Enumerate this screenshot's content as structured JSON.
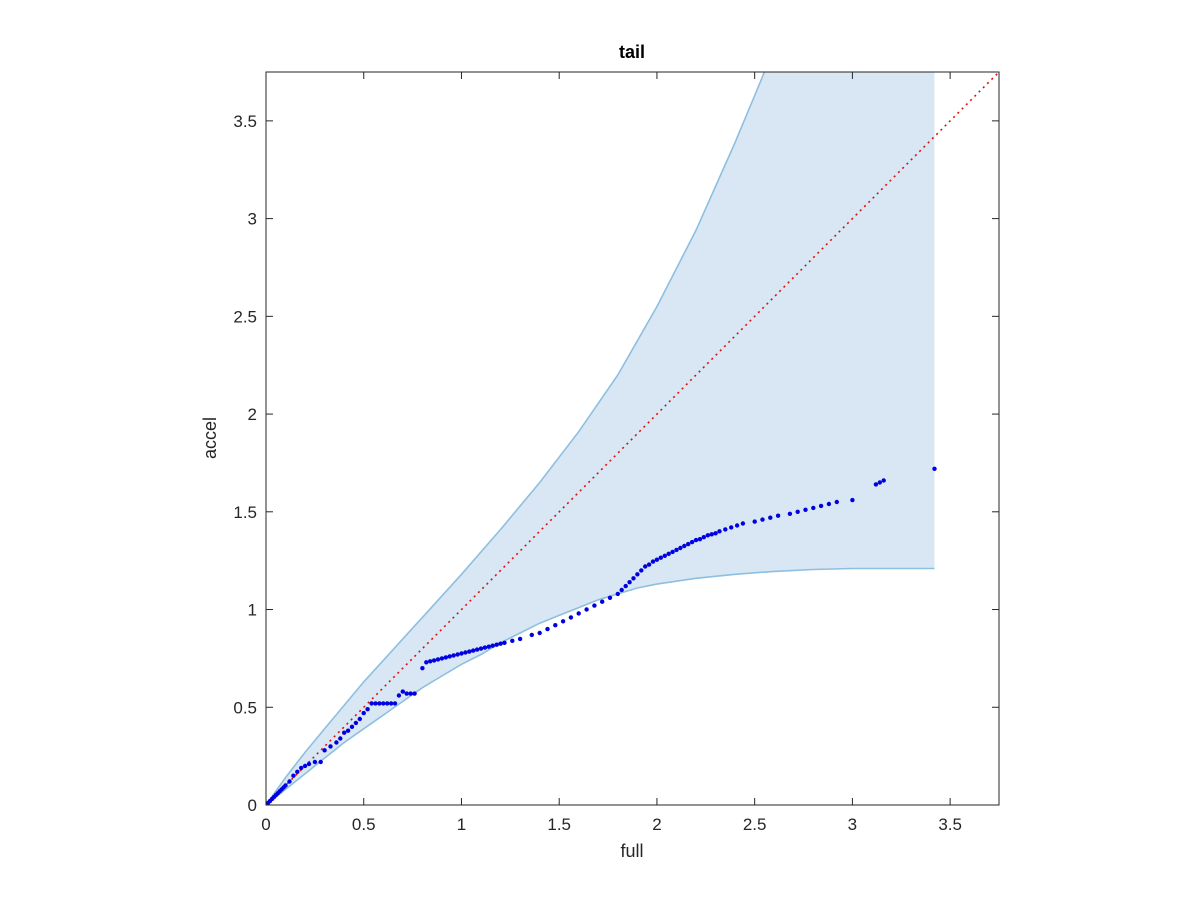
{
  "chart_data": {
    "type": "scatter",
    "title": "tail",
    "xlabel": "full",
    "ylabel": "accel",
    "xlim": [
      0,
      3.75
    ],
    "ylim": [
      0,
      3.75
    ],
    "xticks": [
      0,
      0.5,
      1,
      1.5,
      2,
      2.5,
      3,
      3.5
    ],
    "xtick_labels": [
      "0",
      "0.5",
      "1",
      "1.5",
      "2",
      "2.5",
      "3",
      "3.5"
    ],
    "yticks": [
      0,
      0.5,
      1,
      1.5,
      2,
      2.5,
      3,
      3.5
    ],
    "ytick_labels": [
      "0",
      "0.5",
      "1",
      "1.5",
      "2",
      "2.5",
      "3",
      "3.5"
    ],
    "grid": false,
    "colors": {
      "points": "#0000e0",
      "band_fill": "#d8e7f3",
      "band_edge": "#8dbfe0",
      "reference_line": "#e01010",
      "axes": "#262626"
    },
    "band": {
      "upper": {
        "x": [
          0,
          0.1,
          0.2,
          0.3,
          0.4,
          0.5,
          0.6,
          0.7,
          0.8,
          0.9,
          1.0,
          1.2,
          1.4,
          1.6,
          1.8,
          2.0,
          2.2,
          2.4,
          2.5,
          2.55
        ],
        "y": [
          0,
          0.14,
          0.27,
          0.39,
          0.51,
          0.63,
          0.74,
          0.85,
          0.96,
          1.07,
          1.18,
          1.41,
          1.65,
          1.91,
          2.2,
          2.55,
          2.94,
          3.39,
          3.63,
          3.75
        ]
      },
      "lower": {
        "x": [
          0,
          0.1,
          0.2,
          0.3,
          0.4,
          0.5,
          0.6,
          0.7,
          0.8,
          0.9,
          1.0,
          1.1,
          1.2,
          1.3,
          1.4,
          1.5,
          1.6,
          1.7,
          1.8,
          1.9,
          2.0,
          2.2,
          2.4,
          2.6,
          2.8,
          3.0,
          3.2,
          3.42
        ],
        "y": [
          0,
          0.08,
          0.16,
          0.24,
          0.32,
          0.39,
          0.46,
          0.53,
          0.6,
          0.66,
          0.72,
          0.77,
          0.83,
          0.88,
          0.93,
          0.97,
          1.01,
          1.05,
          1.08,
          1.11,
          1.13,
          1.16,
          1.18,
          1.195,
          1.205,
          1.21,
          1.21,
          1.21
        ]
      },
      "x_max": 3.42
    },
    "reference_line": {
      "x": [
        0,
        3.75
      ],
      "y": [
        0,
        3.75
      ],
      "style": "dotted"
    },
    "series": [
      {
        "x": [
          0.0,
          0.01,
          0.02,
          0.03,
          0.04,
          0.05,
          0.06,
          0.07,
          0.08,
          0.09,
          0.1,
          0.12,
          0.14,
          0.16,
          0.18,
          0.2,
          0.22,
          0.25,
          0.28,
          0.3,
          0.33,
          0.36,
          0.38,
          0.4,
          0.42,
          0.44,
          0.46,
          0.48,
          0.5,
          0.52,
          0.54,
          0.56,
          0.58,
          0.6,
          0.62,
          0.64,
          0.66,
          0.68,
          0.7,
          0.72,
          0.74,
          0.76,
          0.8,
          0.82,
          0.84,
          0.86,
          0.88,
          0.9,
          0.92,
          0.94,
          0.96,
          0.98,
          1.0,
          1.02,
          1.04,
          1.06,
          1.08,
          1.1,
          1.12,
          1.14,
          1.16,
          1.18,
          1.2,
          1.22,
          1.26,
          1.3,
          1.36,
          1.4,
          1.44,
          1.48,
          1.52,
          1.56,
          1.6,
          1.64,
          1.68,
          1.72,
          1.76,
          1.8,
          1.82,
          1.84,
          1.86,
          1.88,
          1.9,
          1.92,
          1.94,
          1.96,
          1.98,
          2.0,
          2.02,
          2.04,
          2.06,
          2.08,
          2.1,
          2.12,
          2.14,
          2.16,
          2.18,
          2.2,
          2.22,
          2.24,
          2.26,
          2.28,
          2.3,
          2.32,
          2.35,
          2.38,
          2.41,
          2.44,
          2.5,
          2.54,
          2.58,
          2.62,
          2.68,
          2.72,
          2.76,
          2.8,
          2.84,
          2.88,
          2.92,
          3.0,
          3.12,
          3.14,
          3.16,
          3.42
        ],
        "y": [
          0.0,
          0.01,
          0.02,
          0.03,
          0.04,
          0.05,
          0.06,
          0.07,
          0.08,
          0.09,
          0.1,
          0.12,
          0.15,
          0.17,
          0.19,
          0.2,
          0.21,
          0.22,
          0.22,
          0.28,
          0.3,
          0.32,
          0.34,
          0.37,
          0.38,
          0.4,
          0.42,
          0.44,
          0.47,
          0.49,
          0.52,
          0.52,
          0.52,
          0.52,
          0.52,
          0.52,
          0.52,
          0.56,
          0.58,
          0.57,
          0.57,
          0.57,
          0.7,
          0.73,
          0.735,
          0.74,
          0.745,
          0.75,
          0.755,
          0.76,
          0.765,
          0.77,
          0.775,
          0.78,
          0.785,
          0.79,
          0.795,
          0.8,
          0.805,
          0.81,
          0.815,
          0.82,
          0.825,
          0.83,
          0.84,
          0.85,
          0.87,
          0.88,
          0.9,
          0.92,
          0.94,
          0.96,
          0.98,
          1.0,
          1.02,
          1.04,
          1.06,
          1.08,
          1.1,
          1.12,
          1.14,
          1.16,
          1.18,
          1.2,
          1.22,
          1.23,
          1.245,
          1.255,
          1.265,
          1.275,
          1.285,
          1.295,
          1.305,
          1.315,
          1.325,
          1.335,
          1.345,
          1.355,
          1.36,
          1.37,
          1.38,
          1.385,
          1.39,
          1.4,
          1.41,
          1.42,
          1.43,
          1.44,
          1.45,
          1.46,
          1.47,
          1.48,
          1.49,
          1.5,
          1.51,
          1.52,
          1.53,
          1.54,
          1.55,
          1.56,
          1.64,
          1.65,
          1.66,
          1.72
        ]
      }
    ]
  }
}
